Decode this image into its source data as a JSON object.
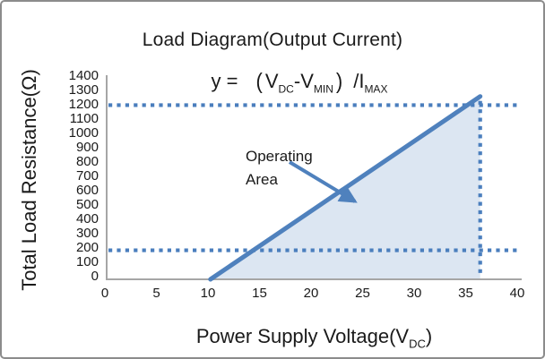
{
  "frame": {
    "background": "#ffffff",
    "border_color": "#8c8c8c"
  },
  "chart_data": {
    "type": "line",
    "title": "Load Diagram(Output Current)",
    "formula": {
      "lhs": "y =",
      "open": "(",
      "v1": "V",
      "v1_sub": "DC",
      "minus": "-",
      "v2": "V",
      "v2_sub": "MIN",
      "close": ")",
      "rhs": "/I",
      "rhs_sub": "MAX"
    },
    "x_axis": {
      "title": "Power Supply Voltage(V",
      "title_sub": "DC",
      "title_end": ")",
      "range": [
        0,
        40
      ],
      "ticks": [
        "0",
        "5",
        "10",
        "15",
        "20",
        "25",
        "30",
        "35",
        "40"
      ]
    },
    "y_axis": {
      "title": "Total Load Resistance(Ω)",
      "range": [
        0,
        1400
      ],
      "ticks": [
        "1400",
        "1300",
        "1200",
        "1100",
        "1000",
        "900",
        "800",
        "700",
        "600",
        "500",
        "400",
        "300",
        "200",
        "100",
        "0"
      ]
    },
    "series": [
      {
        "name": "operating-boundary-line",
        "points": [
          [
            10,
            0
          ],
          [
            36,
            1260
          ]
        ]
      }
    ],
    "guides": {
      "h_lines": [
        1200,
        200
      ],
      "v_line": 36
    },
    "operating_area": {
      "label_line1": "Operating",
      "label_line2": "Area",
      "fill": "#dce6f2"
    },
    "colors": {
      "line": "#4f81bd",
      "guide": "#4a7ebd",
      "axis": "#a6a6a6",
      "text": "#1a1a1a"
    },
    "grid": false,
    "legend": false
  }
}
